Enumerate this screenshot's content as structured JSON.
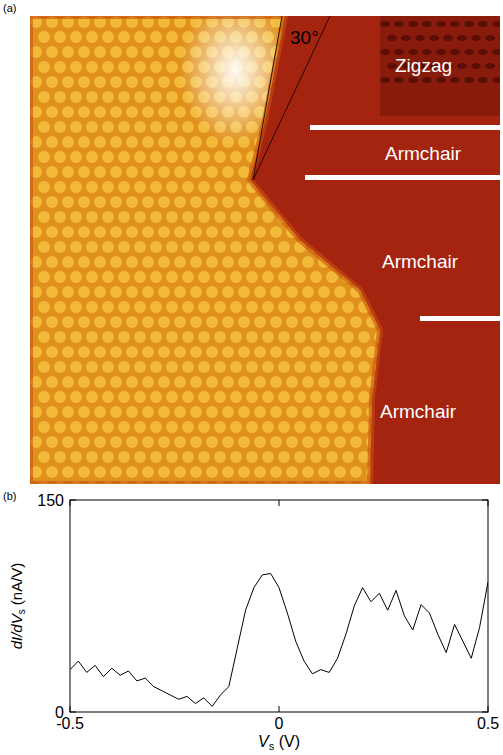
{
  "chart_data": {
    "type": "line",
    "panel_labels": [
      "(a)",
      "(b)"
    ],
    "annotations": [
      "30°",
      "Zigzag",
      "Armchair",
      "Armchair",
      "Armchair"
    ],
    "x_label": "Vs (V)",
    "y_label": "dI/dVs (nA/V)",
    "color": "#000000",
    "x": [
      -0.5,
      -0.48,
      -0.46,
      -0.44,
      -0.42,
      -0.4,
      -0.38,
      -0.36,
      -0.34,
      -0.32,
      -0.3,
      -0.28,
      -0.26,
      -0.24,
      -0.22,
      -0.2,
      -0.18,
      -0.16,
      -0.14,
      -0.12,
      -0.1,
      -0.08,
      -0.06,
      -0.04,
      -0.02,
      0,
      0.02,
      0.04,
      0.06,
      0.08,
      0.1,
      0.12,
      0.14,
      0.16,
      0.18,
      0.2,
      0.22,
      0.24,
      0.26,
      0.28,
      0.3,
      0.32,
      0.34,
      0.36,
      0.38,
      0.4,
      0.42,
      0.44,
      0.46,
      0.48,
      0.5
    ],
    "values": [
      30,
      36,
      28,
      33,
      25,
      31,
      26,
      29,
      22,
      24,
      18,
      15,
      12,
      9,
      11,
      6,
      10,
      4,
      12,
      18,
      45,
      72,
      88,
      97,
      98,
      88,
      70,
      50,
      36,
      27,
      30,
      28,
      38,
      55,
      75,
      88,
      78,
      84,
      72,
      86,
      68,
      58,
      76,
      70,
      55,
      42,
      62,
      50,
      38,
      60,
      92
    ],
    "xlim": [
      -0.5,
      0.5
    ],
    "xticks": [
      -0.5,
      0,
      0.5
    ],
    "ylim": [
      0,
      150
    ],
    "yticks": [
      0,
      150
    ],
    "grid": false
  }
}
